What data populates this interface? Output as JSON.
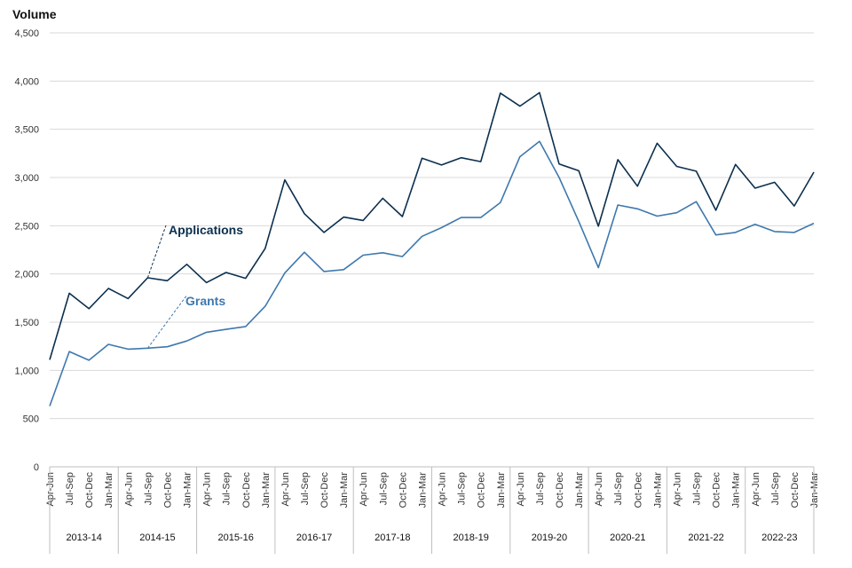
{
  "chart_data": {
    "type": "line",
    "ylabel": "Volume",
    "ylim": [
      0,
      4500
    ],
    "yticks": [
      "0",
      "500",
      "1,000",
      "1,500",
      "2,000",
      "2,500",
      "3,000",
      "3,500",
      "4,000",
      "4,500"
    ],
    "grid": true,
    "x": [
      "Apr-Jun",
      "Jul-Sep",
      "Oct-Dec",
      "Jan-Mar",
      "Apr-Jun",
      "Jul-Sep",
      "Oct-Dec",
      "Jan-Mar",
      "Apr-Jun",
      "Jul-Sep",
      "Oct-Dec",
      "Jan-Mar",
      "Apr-Jun",
      "Jul-Sep",
      "Oct-Dec",
      "Jan-Mar",
      "Apr-Jun",
      "Jul-Sep",
      "Oct-Dec",
      "Jan-Mar",
      "Apr-Jun",
      "Jul-Sep",
      "Oct-Dec",
      "Jan-Mar",
      "Apr-Jun",
      "Jul-Sep",
      "Oct-Dec",
      "Jan-Mar",
      "Apr-Jun",
      "Jul-Sep",
      "Oct-Dec",
      "Jan-Mar",
      "Apr-Jun",
      "Jul-Sep",
      "Oct-Dec",
      "Jan-Mar",
      "Apr-Jun",
      "Jul-Sep",
      "Oct-Dec",
      "Jan-Mar"
    ],
    "groups": [
      "2013-14",
      "2014-15",
      "2015-16",
      "2016-17",
      "2017-18",
      "2018-19",
      "2019-20",
      "2020-21",
      "2021-22",
      "2022-23"
    ],
    "series": [
      {
        "name": "Applications",
        "color": "#0b2f4e",
        "values": [
          1110,
          1800,
          1640,
          1850,
          1745,
          1960,
          1930,
          2100,
          1910,
          2015,
          1955,
          2265,
          2975,
          2625,
          2430,
          2590,
          2555,
          2785,
          2595,
          3200,
          3130,
          3205,
          3165,
          3875,
          3740,
          3880,
          3140,
          3070,
          2495,
          3185,
          2910,
          3355,
          3115,
          3065,
          2660,
          3135,
          2890,
          2950,
          2705,
          3055
        ]
      },
      {
        "name": "Grants",
        "color": "#3e78ae",
        "values": [
          630,
          1195,
          1105,
          1270,
          1220,
          1230,
          1245,
          1305,
          1395,
          1425,
          1455,
          1665,
          2010,
          2225,
          2025,
          2045,
          2195,
          2220,
          2180,
          2390,
          2480,
          2585,
          2585,
          2740,
          3215,
          3375,
          3000,
          2545,
          2065,
          2715,
          2675,
          2600,
          2635,
          2750,
          2405,
          2430,
          2515,
          2440,
          2430,
          2525
        ]
      }
    ]
  }
}
